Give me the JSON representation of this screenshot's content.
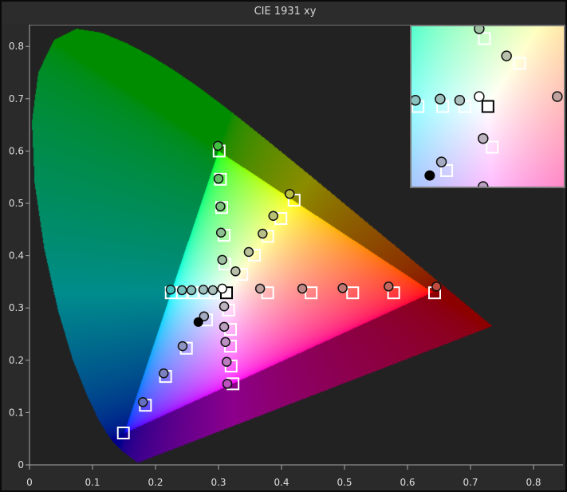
{
  "title": "CIE 1931 xy",
  "chart_data": {
    "type": "scatter",
    "title": "CIE 1931 xy",
    "xlabel": "",
    "ylabel": "",
    "xlim": [
      0,
      0.85
    ],
    "ylim": [
      0,
      0.84
    ],
    "x_ticks": [
      "0",
      "0.1",
      "0.2",
      "0.3",
      "0.4",
      "0.5",
      "0.6",
      "0.7",
      "0.8"
    ],
    "y_ticks": [
      "0",
      "0.1",
      "0.2",
      "0.3",
      "0.4",
      "0.5",
      "0.6",
      "0.7",
      "0.8"
    ],
    "grid": false,
    "gamut_triangle": {
      "red": [
        0.64,
        0.33
      ],
      "green": [
        0.3,
        0.6
      ],
      "blue": [
        0.15,
        0.06
      ]
    },
    "white_point": [
      0.3127,
      0.329
    ],
    "targets": [
      {
        "sweep": "green",
        "points": [
          [
            0.301,
            0.6
          ],
          [
            0.303,
            0.546
          ],
          [
            0.305,
            0.492
          ],
          [
            0.309,
            0.439
          ],
          [
            0.31,
            0.384
          ]
        ]
      },
      {
        "sweep": "yellow",
        "points": [
          [
            0.42,
            0.506
          ],
          [
            0.399,
            0.471
          ],
          [
            0.378,
            0.437
          ],
          [
            0.357,
            0.401
          ],
          [
            0.337,
            0.364
          ]
        ]
      },
      {
        "sweep": "red",
        "points": [
          [
            0.378,
            0.329
          ],
          [
            0.447,
            0.329
          ],
          [
            0.513,
            0.329
          ],
          [
            0.578,
            0.329
          ],
          [
            0.643,
            0.329
          ]
        ]
      },
      {
        "sweep": "cyan",
        "points": [
          [
            0.225,
            0.329
          ],
          [
            0.243,
            0.329
          ],
          [
            0.259,
            0.329
          ],
          [
            0.278,
            0.329
          ],
          [
            0.295,
            0.329
          ]
        ]
      },
      {
        "sweep": "magenta",
        "points": [
          [
            0.316,
            0.296
          ],
          [
            0.319,
            0.259
          ],
          [
            0.319,
            0.227
          ],
          [
            0.32,
            0.189
          ],
          [
            0.323,
            0.155
          ]
        ]
      },
      {
        "sweep": "blue",
        "points": [
          [
            0.281,
            0.277
          ],
          [
            0.249,
            0.223
          ],
          [
            0.216,
            0.169
          ],
          [
            0.184,
            0.114
          ],
          [
            0.149,
            0.061
          ]
        ]
      }
    ],
    "measurements": [
      {
        "sweep": "green",
        "points": [
          [
            0.299,
            0.61
          ],
          [
            0.3,
            0.547
          ],
          [
            0.303,
            0.494
          ],
          [
            0.304,
            0.444
          ],
          [
            0.306,
            0.392
          ]
        ]
      },
      {
        "sweep": "yellow",
        "points": [
          [
            0.413,
            0.518
          ],
          [
            0.387,
            0.476
          ],
          [
            0.37,
            0.442
          ],
          [
            0.348,
            0.407
          ],
          [
            0.327,
            0.37
          ]
        ]
      },
      {
        "sweep": "red",
        "points": [
          [
            0.366,
            0.337
          ],
          [
            0.433,
            0.337
          ],
          [
            0.497,
            0.338
          ],
          [
            0.57,
            0.341
          ],
          [
            0.646,
            0.341
          ]
        ]
      },
      {
        "sweep": "cyan",
        "points": [
          [
            0.224,
            0.335
          ],
          [
            0.242,
            0.334
          ],
          [
            0.257,
            0.334
          ],
          [
            0.276,
            0.335
          ],
          [
            0.291,
            0.334
          ]
        ]
      },
      {
        "sweep": "magenta",
        "points": [
          [
            0.309,
            0.303
          ],
          [
            0.309,
            0.264
          ],
          [
            0.311,
            0.235
          ],
          [
            0.313,
            0.197
          ],
          [
            0.314,
            0.155
          ]
        ]
      },
      {
        "sweep": "blue",
        "points": [
          [
            0.277,
            0.284
          ],
          [
            0.243,
            0.227
          ],
          [
            0.213,
            0.175
          ],
          [
            0.18,
            0.12
          ]
        ]
      }
    ],
    "measured_white": [
      0.306,
      0.337
    ],
    "black_point": [
      0.268,
      0.273
    ],
    "inset": {
      "xlim": [
        0.254,
        0.371
      ],
      "ylim": [
        0.264,
        0.394
      ]
    },
    "colors": {
      "target_stroke": "#ffffff",
      "measured_stroke": "#111111",
      "background": "#222222",
      "axis": "#aaaaaa"
    }
  }
}
